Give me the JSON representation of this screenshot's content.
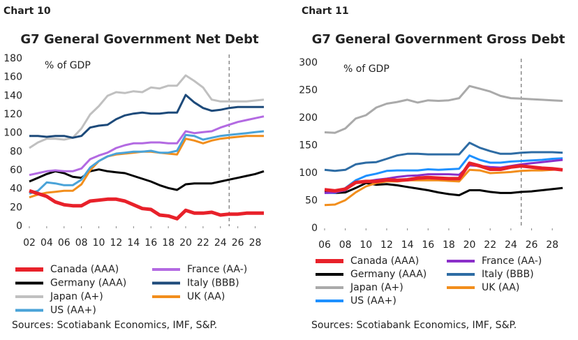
{
  "chart_data": [
    {
      "type": "line",
      "label": "Chart 10",
      "title": "G7 General Government Net Debt",
      "note": "% of GDP",
      "source": "Sources: Scotiabank Economics, IMF, S&P.",
      "x": [
        2002,
        2003,
        2004,
        2005,
        2006,
        2007,
        2008,
        2009,
        2010,
        2011,
        2012,
        2013,
        2014,
        2015,
        2016,
        2017,
        2018,
        2019,
        2020,
        2021,
        2022,
        2023,
        2024,
        2025,
        2026,
        2027,
        2028,
        2029
      ],
      "xlim": [
        2002,
        2029
      ],
      "xticks": [
        {
          "value": 2002,
          "label": "02"
        },
        {
          "value": 2004,
          "label": "04"
        },
        {
          "value": 2006,
          "label": "06"
        },
        {
          "value": 2008,
          "label": "08"
        },
        {
          "value": 2010,
          "label": "10"
        },
        {
          "value": 2012,
          "label": "12"
        },
        {
          "value": 2014,
          "label": "14"
        },
        {
          "value": 2016,
          "label": "16"
        },
        {
          "value": 2018,
          "label": "18"
        },
        {
          "value": 2020,
          "label": "20"
        },
        {
          "value": 2022,
          "label": "22"
        },
        {
          "value": 2024,
          "label": "24"
        },
        {
          "value": 2026,
          "label": "26"
        },
        {
          "value": 2028,
          "label": "28"
        }
      ],
      "ylim": [
        0,
        180
      ],
      "yticks": [
        0,
        20,
        40,
        60,
        80,
        100,
        120,
        140,
        160,
        180
      ],
      "vline": 2025,
      "series": [
        {
          "name": "Canada (AAA)",
          "color": "#e8212a",
          "values": [
            38,
            35,
            32,
            26,
            23,
            22,
            22,
            27,
            28,
            29,
            29,
            27,
            23,
            19,
            18,
            12,
            11,
            8,
            17,
            14,
            14,
            15,
            12,
            13,
            13,
            14,
            14,
            14
          ]
        },
        {
          "name": "France (AA-)",
          "color": "#b36ae2",
          "values": [
            55,
            57,
            59,
            60,
            59,
            59,
            62,
            72,
            76,
            79,
            84,
            87,
            89,
            89,
            90,
            90,
            89,
            89,
            102,
            100,
            101,
            102,
            106,
            109,
            112,
            114,
            116,
            118
          ]
        },
        {
          "name": "Germany (AAA)",
          "color": "#000000",
          "values": [
            48,
            52,
            56,
            59,
            57,
            53,
            52,
            59,
            61,
            59,
            58,
            57,
            54,
            51,
            48,
            44,
            41,
            39,
            45,
            46,
            46,
            46,
            48,
            50,
            52,
            54,
            56,
            59
          ]
        },
        {
          "name": "Italy (BBB)",
          "color": "#1d4a7a",
          "values": [
            97,
            97,
            96,
            97,
            97,
            95,
            97,
            106,
            108,
            109,
            115,
            119,
            121,
            122,
            121,
            121,
            122,
            122,
            141,
            133,
            127,
            124,
            125,
            127,
            128,
            128,
            128,
            128
          ]
        },
        {
          "name": "Japan (A+)",
          "color": "#c0c0c0",
          "values": [
            84,
            90,
            94,
            94,
            93,
            95,
            105,
            120,
            129,
            140,
            144,
            143,
            145,
            144,
            149,
            148,
            151,
            151,
            162,
            156,
            149,
            136,
            134,
            134,
            134,
            134,
            135,
            136
          ]
        },
        {
          "name": "UK (AA)",
          "color": "#f28e1c",
          "values": [
            31,
            34,
            36,
            37,
            38,
            38,
            45,
            60,
            70,
            75,
            77,
            78,
            79,
            80,
            80,
            79,
            78,
            77,
            94,
            92,
            89,
            92,
            94,
            95,
            96,
            97,
            97,
            97
          ]
        },
        {
          "name": "US (AA+)",
          "color": "#4aa3d8",
          "values": [
            35,
            38,
            47,
            46,
            44,
            44,
            50,
            63,
            70,
            75,
            78,
            79,
            80,
            80,
            81,
            79,
            79,
            81,
            98,
            97,
            93,
            95,
            97,
            98,
            99,
            100,
            101,
            102
          ]
        }
      ]
    },
    {
      "type": "line",
      "label": "Chart 11",
      "title": "G7 General Government Gross Debt",
      "note": "% of GDP",
      "source": "Sources: Scotiabank Economics, IMF, S&P.",
      "x": [
        2006,
        2007,
        2008,
        2009,
        2010,
        2011,
        2012,
        2013,
        2014,
        2015,
        2016,
        2017,
        2018,
        2019,
        2020,
        2021,
        2022,
        2023,
        2024,
        2025,
        2026,
        2027,
        2028,
        2029
      ],
      "xlim": [
        2006,
        2029
      ],
      "xticks": [
        {
          "value": 2006,
          "label": "06"
        },
        {
          "value": 2008,
          "label": "08"
        },
        {
          "value": 2010,
          "label": "10"
        },
        {
          "value": 2012,
          "label": "12"
        },
        {
          "value": 2014,
          "label": "14"
        },
        {
          "value": 2016,
          "label": "16"
        },
        {
          "value": 2018,
          "label": "18"
        },
        {
          "value": 2020,
          "label": "20"
        },
        {
          "value": 2022,
          "label": "22"
        },
        {
          "value": 2024,
          "label": "24"
        },
        {
          "value": 2026,
          "label": "26"
        },
        {
          "value": 2028,
          "label": "28"
        }
      ],
      "ylim": [
        0,
        300
      ],
      "yticks": [
        0,
        50,
        100,
        150,
        200,
        250,
        300
      ],
      "vline": 2025,
      "series": [
        {
          "name": "Canada (AAA)",
          "color": "#e8212a",
          "values": [
            70,
            68,
            71,
            83,
            85,
            85,
            88,
            87,
            88,
            91,
            92,
            91,
            90,
            90,
            118,
            113,
            107,
            107,
            111,
            113,
            111,
            109,
            108,
            106
          ]
        },
        {
          "name": "France (AA-)",
          "color": "#8b2fc9",
          "values": [
            64,
            65,
            69,
            83,
            85,
            88,
            90,
            93,
            95,
            96,
            98,
            98,
            98,
            97,
            114,
            113,
            111,
            110,
            113,
            116,
            118,
            120,
            122,
            124
          ]
        },
        {
          "name": "Germany (AAA)",
          "color": "#000000",
          "values": [
            66,
            64,
            65,
            73,
            82,
            79,
            80,
            78,
            75,
            72,
            69,
            65,
            62,
            60,
            69,
            69,
            66,
            64,
            64,
            66,
            67,
            69,
            71,
            73
          ]
        },
        {
          "name": "Italy (BBB)",
          "color": "#2e6ca4",
          "values": [
            106,
            104,
            106,
            116,
            119,
            120,
            126,
            132,
            135,
            135,
            134,
            134,
            134,
            134,
            155,
            146,
            140,
            135,
            135,
            137,
            138,
            138,
            138,
            137
          ]
        },
        {
          "name": "Japan (A+)",
          "color": "#aaaaaa",
          "values": [
            174,
            173,
            181,
            199,
            205,
            219,
            226,
            229,
            233,
            228,
            232,
            231,
            232,
            236,
            258,
            253,
            248,
            240,
            236,
            235,
            234,
            233,
            232,
            231
          ]
        },
        {
          "name": "UK (AA)",
          "color": "#f28e1c",
          "values": [
            42,
            43,
            51,
            65,
            76,
            82,
            85,
            85,
            87,
            87,
            87,
            87,
            86,
            85,
            106,
            105,
            100,
            101,
            102,
            104,
            105,
            105,
            106,
            107
          ]
        },
        {
          "name": "US (AA+)",
          "color": "#1e90ff",
          "values": [
            64,
            64,
            73,
            87,
            95,
            99,
            104,
            105,
            105,
            105,
            107,
            106,
            107,
            108,
            132,
            124,
            119,
            119,
            121,
            122,
            123,
            124,
            126,
            127
          ]
        }
      ]
    }
  ]
}
